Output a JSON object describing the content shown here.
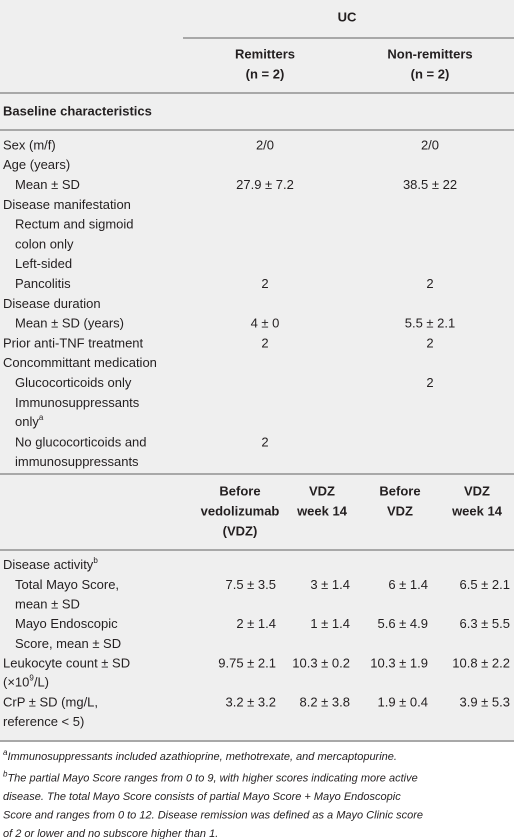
{
  "table": {
    "group_header": "UC",
    "columns": [
      [
        "Remitters",
        "(n = 2)"
      ],
      [
        "Non-remitters",
        "(n = 2)"
      ]
    ],
    "section": "Baseline characteristics",
    "baseline_rows": [
      {
        "label": [
          "Sex (m/f)"
        ],
        "values": [
          "2/0",
          "2/0"
        ]
      },
      {
        "label": [
          "Age (years)"
        ]
      },
      {
        "label": [
          "Mean ± SD"
        ],
        "values": [
          "27.9 ± 7.2",
          "38.5 ± 22"
        ]
      },
      {
        "label": [
          "Disease manifestation"
        ]
      },
      {
        "label": [
          "Rectum and sigmoid",
          "colon only"
        ]
      },
      {
        "label": [
          "Left-sided"
        ]
      },
      {
        "label": [
          "Pancolitis"
        ],
        "values": [
          "2",
          "2"
        ]
      },
      {
        "label": [
          "Disease duration"
        ]
      },
      {
        "label": [
          "Mean ± SD (years)"
        ],
        "values": [
          "4 ± 0",
          "5.5 ± 2.1"
        ]
      },
      {
        "label": [
          "Prior anti-TNF treatment"
        ],
        "values": [
          "2",
          "2"
        ]
      },
      {
        "label": [
          "Concommittant medication"
        ]
      },
      {
        "label": [
          "Glucocorticoids only"
        ],
        "values": [
          null,
          "2"
        ]
      },
      {
        "label": [
          "Immunosuppressants",
          "only"
        ],
        "sup": "a"
      },
      {
        "label": [
          "No glucocorticoids and",
          "immunosuppressants"
        ],
        "values": [
          "2",
          null
        ]
      }
    ],
    "vdz_columns": [
      [
        "Before",
        "vedolizumab",
        "(VDZ)"
      ],
      [
        "VDZ",
        "week 14"
      ],
      [
        "Before",
        "VDZ"
      ],
      [
        "VDZ",
        "week 14"
      ]
    ],
    "activity_rows": [
      {
        "label": [
          "Disease activity"
        ],
        "sup": "b"
      },
      {
        "label": [
          "Total Mayo Score,",
          "mean ± SD"
        ],
        "values": [
          "7.5 ± 3.5",
          "3 ± 1.4",
          "6 ± 1.4",
          "6.5 ± 2.1"
        ]
      },
      {
        "label": [
          "Mayo Endoscopic",
          "Score, mean ± SD"
        ],
        "values": [
          "2 ± 1.4",
          "1 ± 1.4",
          "5.6 ± 4.9",
          "6.3 ± 5.5"
        ]
      },
      {
        "label": [
          "Leukocyte count ± SD",
          "(×10"
        ],
        "sup": "9",
        "after_sup": "/L)",
        "values": [
          "9.75 ± 2.1",
          "10.3 ± 0.2",
          "10.3 ± 1.9",
          "10.8 ± 2.2"
        ]
      },
      {
        "label": [
          "CrP ± SD (mg/L,",
          "reference < 5)"
        ],
        "values": [
          "3.2 ± 3.2",
          "8.2 ± 3.8",
          "1.9 ± 0.4",
          "3.9 ± 5.3"
        ]
      }
    ],
    "footnotes": [
      {
        "mark": "a",
        "lines": [
          "Immunosuppressants included azathioprine, methotrexate, and mercaptopurine."
        ]
      },
      {
        "mark": "b",
        "lines": [
          "The partial Mayo Score ranges from 0 to 9, with higher scores indicating more active",
          "disease. The total Mayo Score consists of partial Mayo Score + Mayo Endoscopic",
          "Score and ranges from 0 to 12. Disease remission was defined as a Mayo Clinic score",
          "of 2 or lower and no subscore higher than 1."
        ]
      }
    ]
  }
}
